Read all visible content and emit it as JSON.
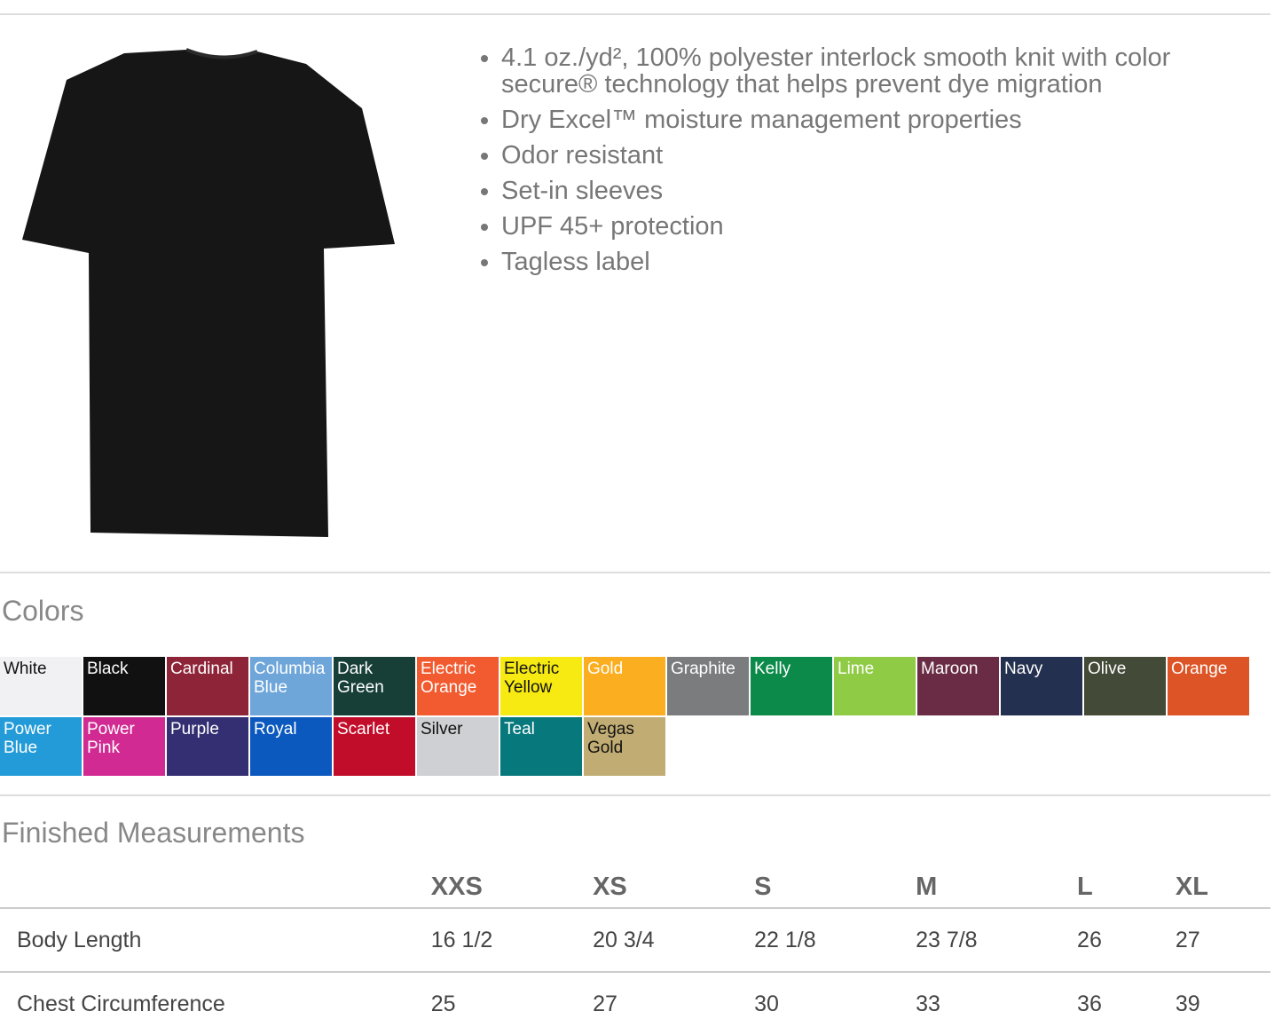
{
  "product": {
    "image": "black t-shirt",
    "features": [
      "4.1 oz./yd², 100% polyester interlock smooth knit with color secure® technology that helps prevent dye migration",
      "Dry Excel™ moisture management properties",
      "Odor resistant",
      "Set-in sleeves",
      "UPF 45+ protection",
      "Tagless label"
    ]
  },
  "colors": {
    "heading": "Colors",
    "items": [
      {
        "name": "White",
        "hex": "#f1f1f3",
        "dark": true
      },
      {
        "name": "Black",
        "hex": "#111111"
      },
      {
        "name": "Cardinal",
        "hex": "#8e2438"
      },
      {
        "name": "Columbia Blue",
        "hex": "#6ea6da"
      },
      {
        "name": "Dark Green",
        "hex": "#173f38"
      },
      {
        "name": "Electric Orange",
        "hex": "#f25a2f"
      },
      {
        "name": "Electric Yellow",
        "hex": "#f6ea12",
        "dark": true
      },
      {
        "name": "Gold",
        "hex": "#fbae1f"
      },
      {
        "name": "Graphite",
        "hex": "#7b7c7e"
      },
      {
        "name": "Kelly",
        "hex": "#0c8a4a"
      },
      {
        "name": "Lime",
        "hex": "#8fcb45"
      },
      {
        "name": "Maroon",
        "hex": "#6a2c44"
      },
      {
        "name": "Navy",
        "hex": "#24304f"
      },
      {
        "name": "Olive",
        "hex": "#434a37"
      },
      {
        "name": "Orange",
        "hex": "#dd5527"
      },
      {
        "name": "Power Blue",
        "hex": "#239bd8"
      },
      {
        "name": "Power Pink",
        "hex": "#d12a92"
      },
      {
        "name": "Purple",
        "hex": "#342e72"
      },
      {
        "name": "Royal",
        "hex": "#0b58bf"
      },
      {
        "name": "Scarlet",
        "hex": "#c20d2a"
      },
      {
        "name": "Silver",
        "hex": "#cfd0d3",
        "dark": true
      },
      {
        "name": "Teal",
        "hex": "#07787c"
      },
      {
        "name": "Vegas Gold",
        "hex": "#c1ad73",
        "dark": true
      }
    ]
  },
  "measurements": {
    "heading": "Finished Measurements",
    "sizes": [
      "XXS",
      "XS",
      "S",
      "M",
      "L",
      "XL"
    ],
    "rows": [
      {
        "label": "Body Length",
        "values": [
          "16 1/2",
          "20 3/4",
          "22 1/8",
          "23 7/8",
          "26",
          "27"
        ]
      },
      {
        "label": "Chest Circumference",
        "values": [
          "25",
          "27",
          "30",
          "33",
          "36",
          "39"
        ]
      }
    ]
  }
}
